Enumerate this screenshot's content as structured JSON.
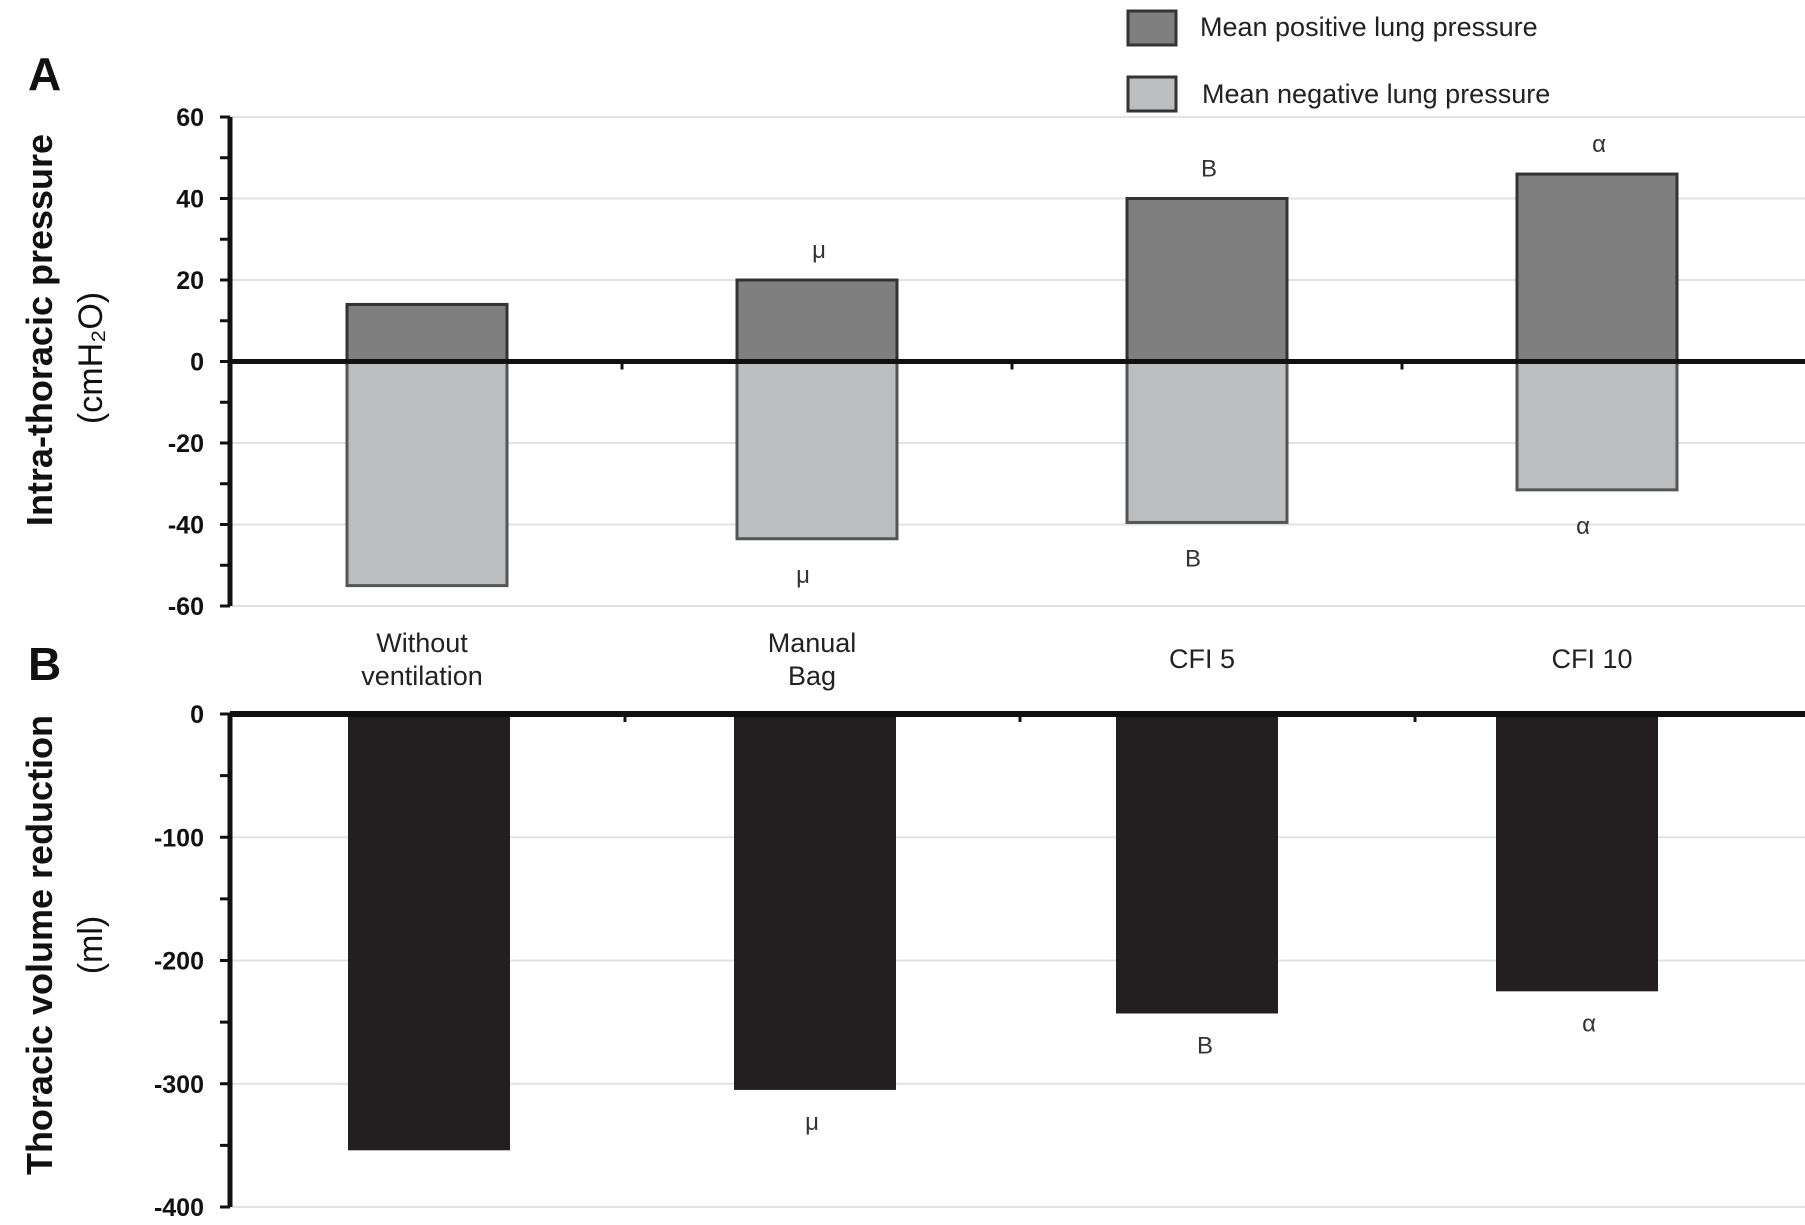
{
  "chart_data": [
    {
      "panel_label": "A",
      "type": "bar",
      "categories": [
        "Without\nventilation",
        "Manual\nBag",
        "CFI 5",
        "CFI 10"
      ],
      "series": [
        {
          "name": "Mean positive lung pressure",
          "values": [
            14,
            20,
            40,
            46
          ],
          "color": "#7f7f7f",
          "annotations": [
            "",
            "μ",
            "B",
            "α"
          ]
        },
        {
          "name": "Mean negative lung pressure",
          "values": [
            -55,
            -43.5,
            -39.5,
            -31.5
          ],
          "color": "#bcbdbf",
          "annotations": [
            "",
            "μ",
            "B",
            "α"
          ]
        }
      ],
      "ylabel": "Intra-thoracic pressure",
      "ylabel_unit": "(cmH₂O)",
      "ylim": [
        -60,
        60
      ],
      "yticks": [
        60,
        40,
        20,
        0,
        -20,
        -40,
        -60
      ],
      "grid": true,
      "legend": "top-right"
    },
    {
      "panel_label": "B",
      "type": "bar",
      "categories": [
        "Without\nventilation",
        "Manual\nBag",
        "CFI 5",
        "CFI 10"
      ],
      "series": [
        {
          "values": [
            -354,
            -305,
            -243,
            -225
          ],
          "color": "#231f20",
          "annotations": [
            "",
            "μ",
            "B",
            "α"
          ]
        }
      ],
      "ylabel": "Thoracic volume reduction",
      "ylabel_unit": "(ml)",
      "ylim": [
        -400,
        0
      ],
      "yticks": [
        0,
        -100,
        -200,
        -300,
        -400
      ],
      "grid": true
    }
  ]
}
